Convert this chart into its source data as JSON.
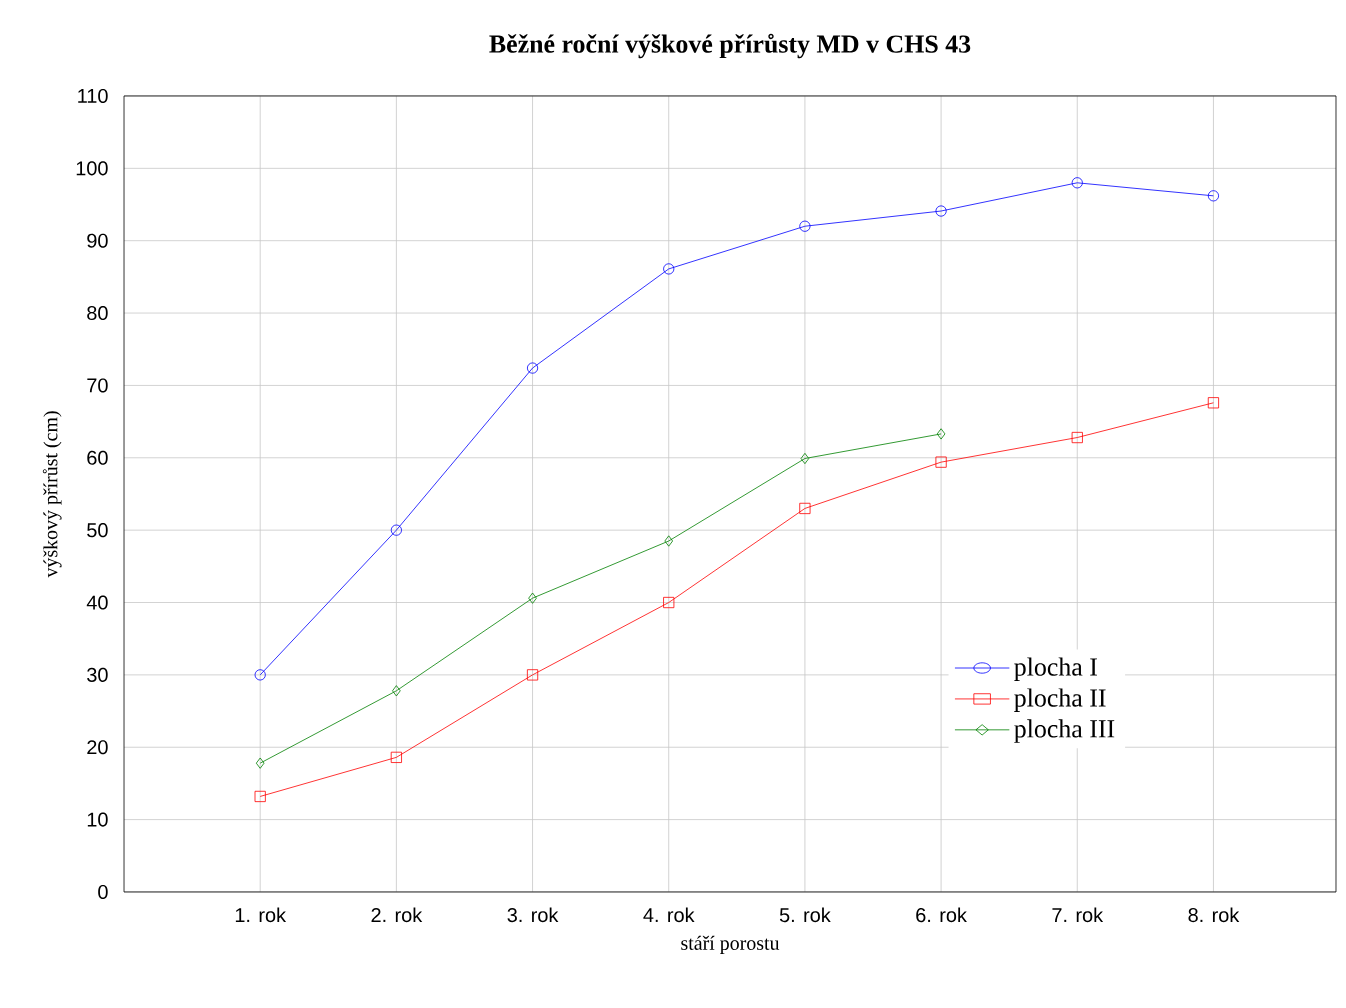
{
  "chart_data": {
    "type": "line",
    "title": "Běžné roční výškové přírůsty MD v CHS 43",
    "xlabel": "stáří porostu",
    "ylabel": "výškový přírůst (cm)",
    "categories": [
      "1. rok",
      "2. rok",
      "3. rok",
      "4. rok",
      "5. rok",
      "6. rok",
      "7. rok",
      "8. rok"
    ],
    "series": [
      {
        "name": "plocha I",
        "color": "#0000ff",
        "marker": "circle",
        "values": [
          30,
          50,
          72.4,
          86.1,
          92,
          94.1,
          98,
          96.2
        ]
      },
      {
        "name": "plocha II",
        "color": "#ff0000",
        "marker": "square",
        "values": [
          13.2,
          18.6,
          30,
          40,
          53,
          59.4,
          62.8,
          67.6
        ]
      },
      {
        "name": "plocha III",
        "color": "#008000",
        "marker": "diamond",
        "values": [
          17.8,
          27.8,
          40.6,
          48.5,
          59.9,
          63.3,
          null,
          null
        ]
      }
    ],
    "ylim": [
      0,
      110
    ],
    "yticks": [
      0,
      10,
      20,
      30,
      40,
      50,
      60,
      70,
      80,
      90,
      100,
      110
    ],
    "grid": true,
    "legend": "bottom right",
    "line_style": "solid"
  }
}
